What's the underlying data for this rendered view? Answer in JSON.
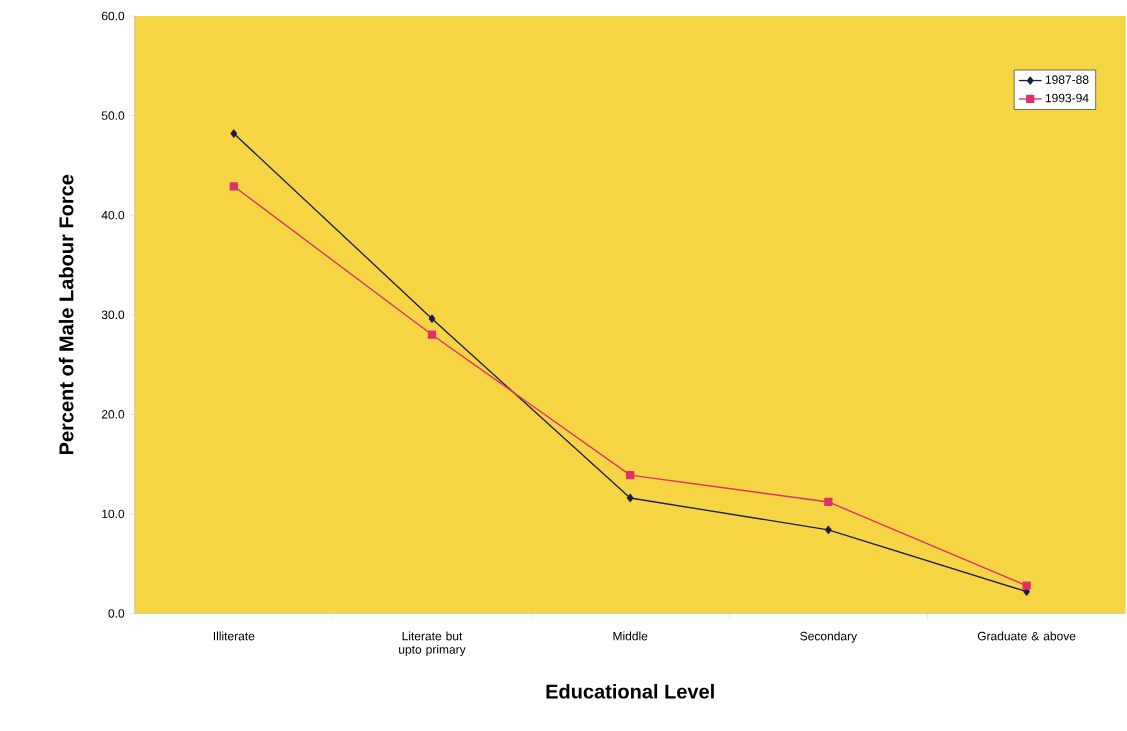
{
  "chart_data": {
    "type": "line",
    "xlabel": "Educational Level",
    "ylabel": "Percent of Male Labour Force",
    "categories": [
      "Illiterate",
      "Literate but upto primary",
      "Middle",
      "Secondary",
      "Graduate & above"
    ],
    "series": [
      {
        "name": "1987-88",
        "color": "#1c1c4c",
        "marker": "diamond",
        "values": [
          48.2,
          29.6,
          11.6,
          8.4,
          2.2
        ]
      },
      {
        "name": "1993-94",
        "color": "#e0306a",
        "marker": "square",
        "values": [
          42.9,
          28.0,
          13.9,
          11.2,
          2.8
        ]
      }
    ],
    "ylim": [
      0,
      60
    ],
    "yticks": [
      {
        "value": 0,
        "label": "0.0"
      },
      {
        "value": 10,
        "label": "10.0"
      },
      {
        "value": 20,
        "label": "20.0"
      },
      {
        "value": 30,
        "label": "30.0"
      },
      {
        "value": 40,
        "label": "40.0"
      },
      {
        "value": 50,
        "label": "50.0"
      },
      {
        "value": 60,
        "label": "60.0"
      }
    ],
    "grid": false,
    "legend": "top right",
    "line_style": "solid"
  }
}
